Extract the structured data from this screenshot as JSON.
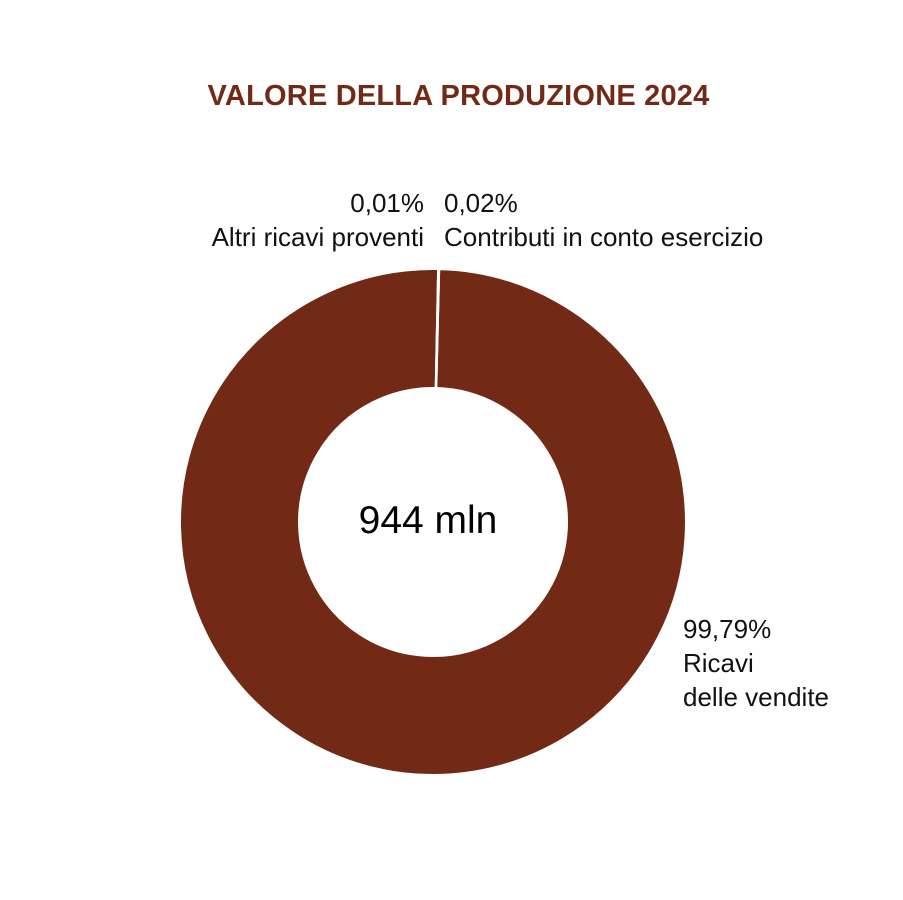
{
  "colors": {
    "slice": "#722a17",
    "title": "#722a17",
    "separator": "#ffffff"
  },
  "chart_data": {
    "type": "pie",
    "variant": "donut",
    "title": "VALORE DELLA PRODUZIONE 2024",
    "center_label": "944 mln",
    "slices": [
      {
        "id": "ricavi",
        "value": 99.79,
        "pct_label": "99,79%",
        "name_lines": [
          "Ricavi",
          "delle vendite"
        ]
      },
      {
        "id": "altri",
        "value": 0.01,
        "pct_label": "0,01%",
        "name_lines": [
          "Altri ricavi proventi"
        ]
      },
      {
        "id": "contributi",
        "value": 0.02,
        "pct_label": "0,02%",
        "name_lines": [
          "Contributi in conto esercizio"
        ]
      }
    ]
  }
}
